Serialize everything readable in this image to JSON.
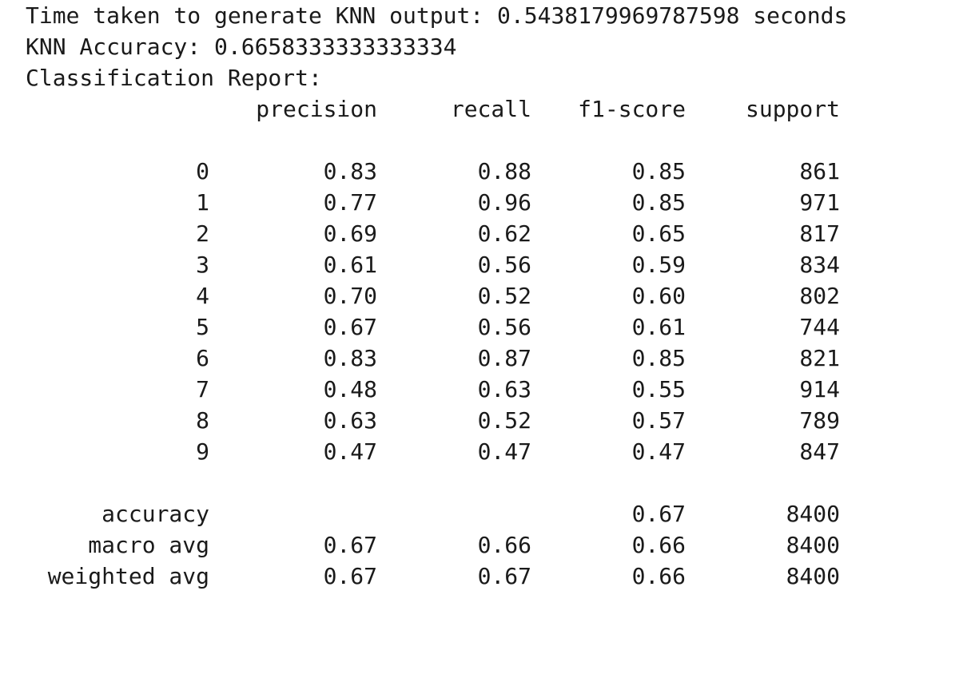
{
  "output": {
    "time_line": "Time taken to generate KNN output: 0.5438179969787598 seconds",
    "accuracy_line": "KNN Accuracy: 0.6658333333333334",
    "report_title": "Classification Report:"
  },
  "report": {
    "headers": [
      "precision",
      "recall",
      "f1-score",
      "support"
    ],
    "class_rows": [
      {
        "label": "0",
        "precision": "0.83",
        "recall": "0.88",
        "f1": "0.85",
        "support": "861"
      },
      {
        "label": "1",
        "precision": "0.77",
        "recall": "0.96",
        "f1": "0.85",
        "support": "971"
      },
      {
        "label": "2",
        "precision": "0.69",
        "recall": "0.62",
        "f1": "0.65",
        "support": "817"
      },
      {
        "label": "3",
        "precision": "0.61",
        "recall": "0.56",
        "f1": "0.59",
        "support": "834"
      },
      {
        "label": "4",
        "precision": "0.70",
        "recall": "0.52",
        "f1": "0.60",
        "support": "802"
      },
      {
        "label": "5",
        "precision": "0.67",
        "recall": "0.56",
        "f1": "0.61",
        "support": "744"
      },
      {
        "label": "6",
        "precision": "0.83",
        "recall": "0.87",
        "f1": "0.85",
        "support": "821"
      },
      {
        "label": "7",
        "precision": "0.48",
        "recall": "0.63",
        "f1": "0.55",
        "support": "914"
      },
      {
        "label": "8",
        "precision": "0.63",
        "recall": "0.52",
        "f1": "0.57",
        "support": "789"
      },
      {
        "label": "9",
        "precision": "0.47",
        "recall": "0.47",
        "f1": "0.47",
        "support": "847"
      }
    ],
    "summary_rows": [
      {
        "label": "accuracy",
        "precision": "",
        "recall": "",
        "f1": "0.67",
        "support": "8400"
      },
      {
        "label": "macro avg",
        "precision": "0.67",
        "recall": "0.66",
        "f1": "0.66",
        "support": "8400"
      },
      {
        "label": "weighted avg",
        "precision": "0.67",
        "recall": "0.67",
        "f1": "0.66",
        "support": "8400"
      }
    ]
  }
}
